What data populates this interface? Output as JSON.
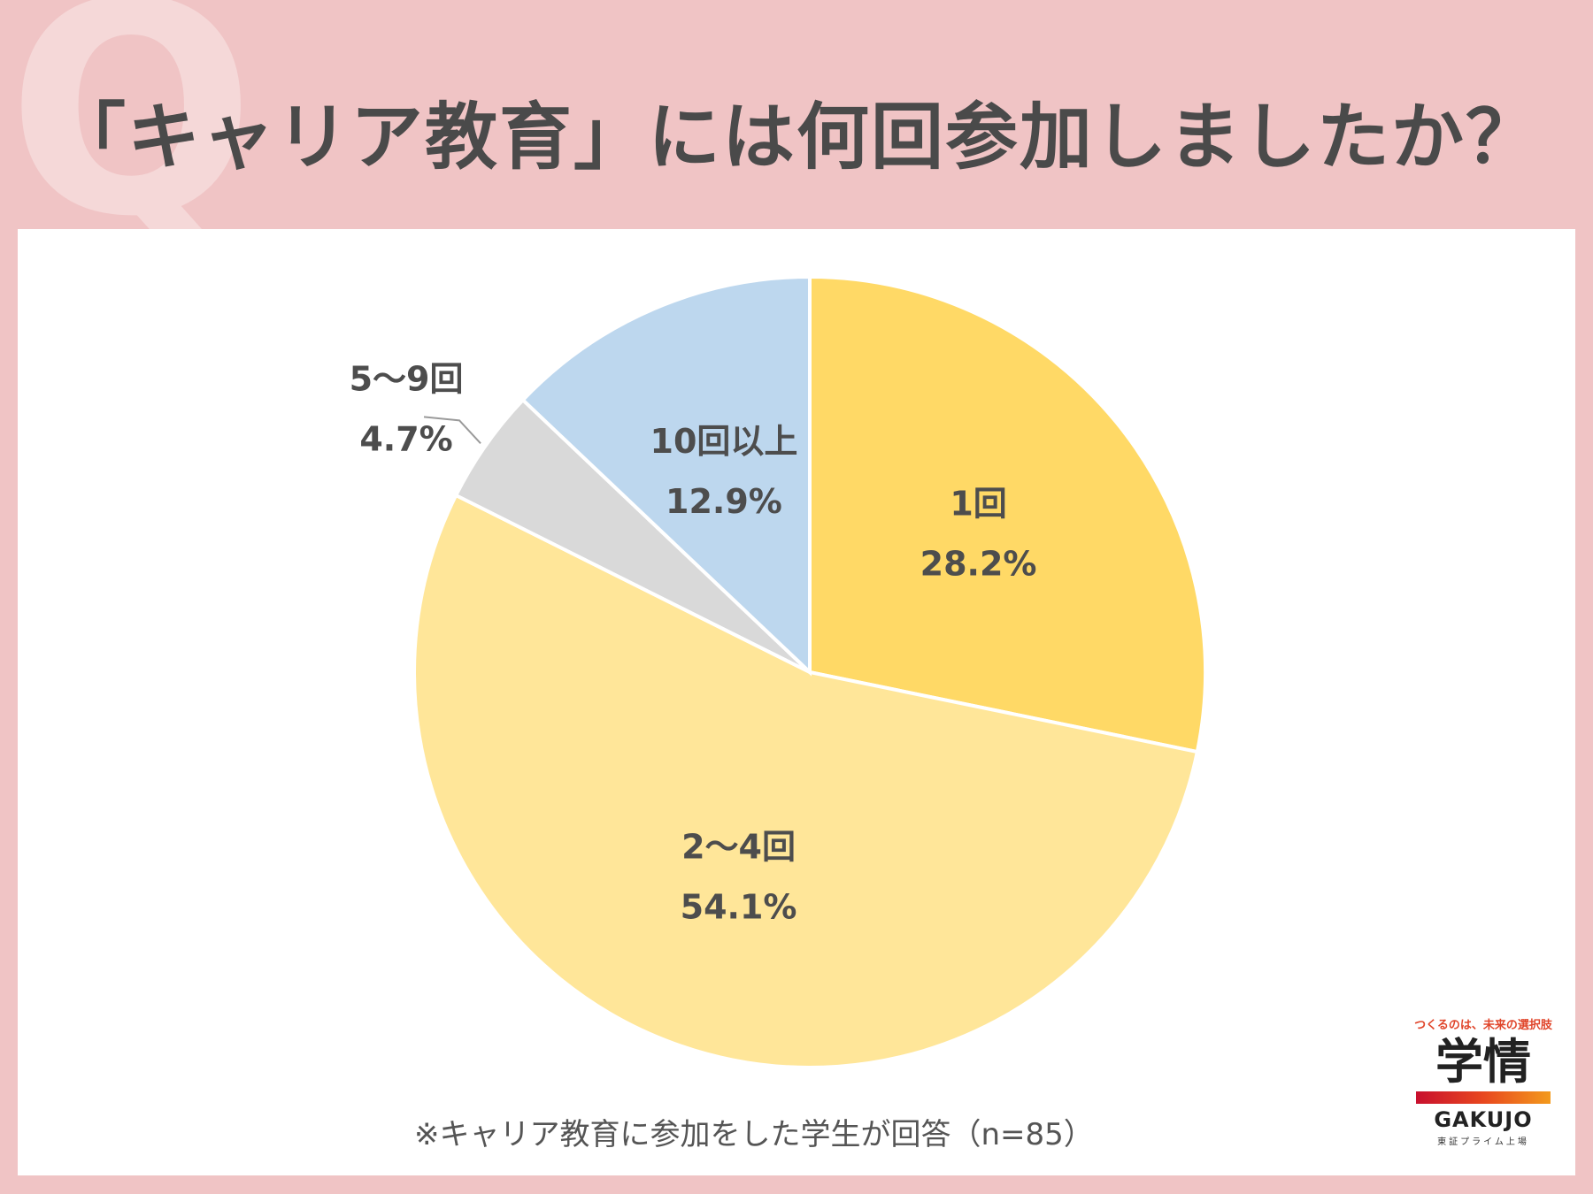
{
  "page": {
    "title": "「キャリア教育」には何回参加しましたか？",
    "watermark": "Q",
    "note": "※キャリア教育に参加をした学生が回答（n=85）"
  },
  "brand": {
    "tagline": "つくるのは、未来の選択肢",
    "logo": "学情",
    "name": "GAKUJO",
    "sub": "東証プライム上場"
  },
  "chart_data": {
    "type": "pie",
    "title": "「キャリア教育」には何回参加しましたか？",
    "categories": [
      "1回",
      "2〜4回",
      "5〜9回",
      "10回以上"
    ],
    "values": [
      28.2,
      54.1,
      4.7,
      12.9
    ],
    "labels": [
      "28.2%",
      "54.1%",
      "4.7%",
      "12.9%"
    ],
    "colors": [
      "#ffd966",
      "#ffe699",
      "#d9d9d9",
      "#bdd7ee"
    ],
    "start": "12 o'clock, clockwise",
    "legend": "none"
  }
}
